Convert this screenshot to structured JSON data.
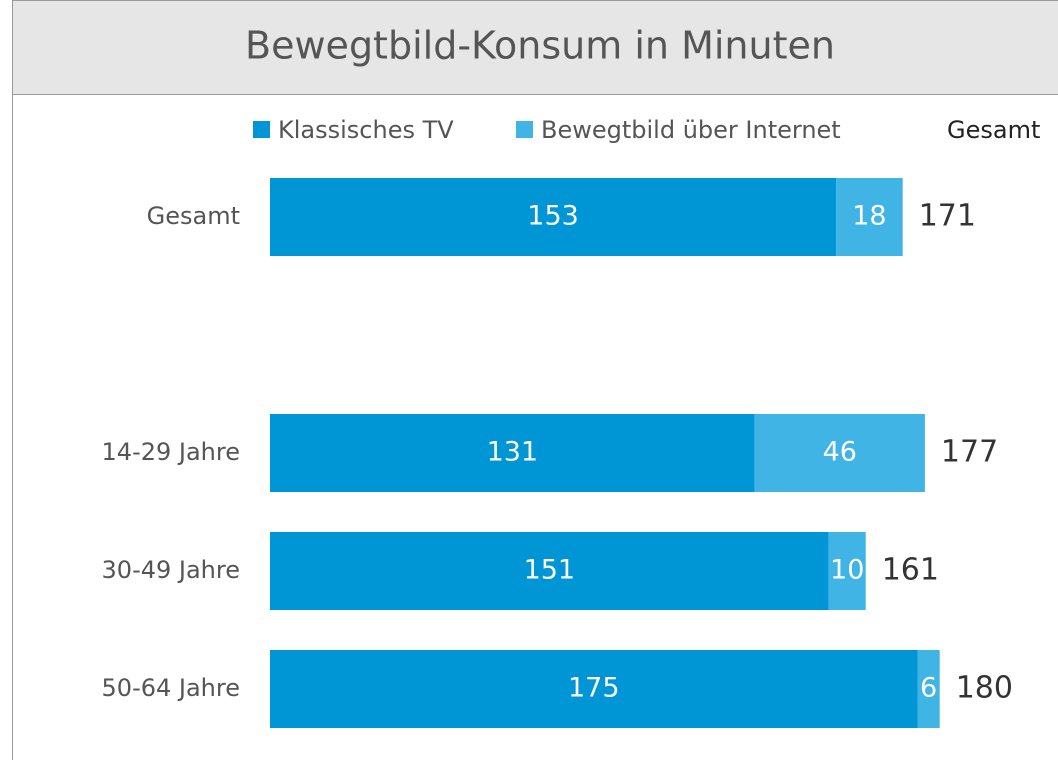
{
  "chart_data": {
    "type": "stacked-barh",
    "title": "Bewegtbild-Konsum in Minuten",
    "categories": [
      "Gesamt",
      null,
      "14-29 Jahre",
      "30-49 Jahre",
      "50-64 Jahre"
    ],
    "series": [
      {
        "name": "Klassisches TV",
        "color": "#0096d6",
        "values": [
          153,
          null,
          131,
          151,
          175
        ]
      },
      {
        "name": "Bewegtbild über Internet",
        "color": "#41b4e6",
        "values": [
          18,
          null,
          46,
          10,
          6
        ]
      }
    ],
    "totals": {
      "name": "Gesamt",
      "values": [
        171,
        null,
        177,
        161,
        180
      ]
    }
  }
}
